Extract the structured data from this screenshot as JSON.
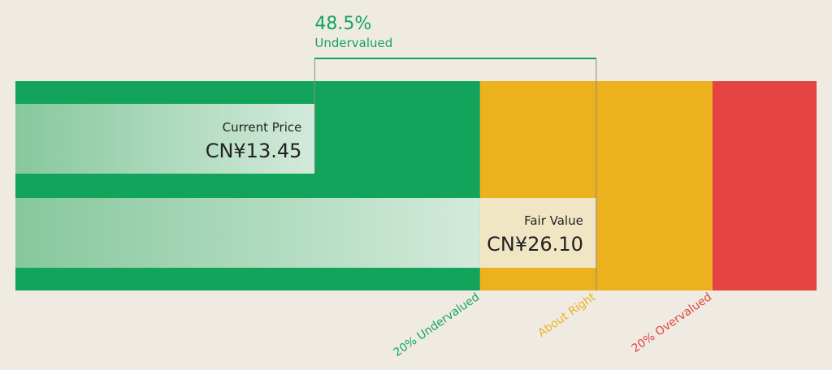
{
  "chart_data": {
    "type": "bar",
    "currency": "CN¥",
    "current_price": {
      "label": "Current Price",
      "value": 13.45,
      "display": "CN¥13.45"
    },
    "fair_value": {
      "label": "Fair Value",
      "value": 26.1,
      "display": "CN¥26.10"
    },
    "difference": {
      "percent_label": "48.5%",
      "status_label": "Undervalued"
    },
    "zones": [
      {
        "name": "undervalued",
        "from": 0,
        "to": 20.88,
        "color": "#13a45c",
        "label": "20% Undervalued",
        "label_color": "#13a45c"
      },
      {
        "name": "about_right",
        "from": 20.88,
        "to": 31.32,
        "color": "#ecb21e",
        "label": "About Right",
        "label_color": "#ecb21e"
      },
      {
        "name": "overvalued",
        "from": 31.32,
        "to": 36.0,
        "color": "#e54242",
        "label": "20% Overvalued",
        "label_color": "#e54242"
      }
    ],
    "xlim": [
      0,
      36.0
    ],
    "colors": {
      "background": "#efebe3",
      "bar_fill_start": "#86c89c",
      "bar_fill_end": "#d3eadb",
      "fair_overlay": "#f1e6c4",
      "text": "#222222",
      "accent": "#13a45c",
      "line": "#888888"
    }
  }
}
